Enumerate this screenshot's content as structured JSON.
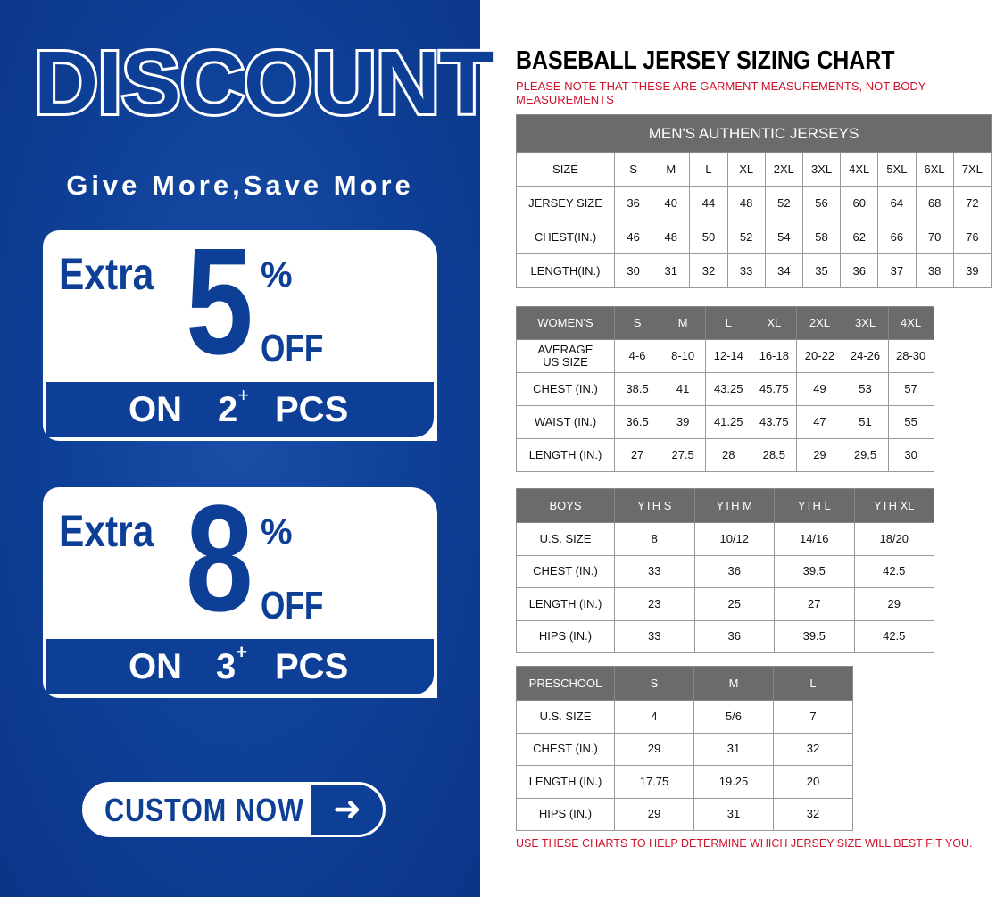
{
  "promo": {
    "headline": "DISCOUNT",
    "tagline": "Give More,Save More",
    "offers": [
      {
        "extra": "Extra",
        "value": "5",
        "percent": "%",
        "off": "OFF",
        "on": "ON",
        "qty": "2",
        "plus": "+",
        "pcs": "PCS"
      },
      {
        "extra": "Extra",
        "value": "8",
        "percent": "%",
        "off": "OFF",
        "on": "ON",
        "qty": "3",
        "plus": "+",
        "pcs": "PCS"
      }
    ],
    "button": {
      "label": "CUSTOM NOW",
      "icon": "arrow-right-icon"
    },
    "colors": {
      "blue": "#0e3f96",
      "white": "#ffffff"
    }
  },
  "chart": {
    "title": "BASEBALL JERSEY SIZING CHART",
    "note": "PLEASE NOTE THAT THESE ARE GARMENT MEASUREMENTS, NOT BODY MEASUREMENTS",
    "footer": "USE THESE CHARTS TO HELP DETERMINE WHICH JERSEY SIZE WILL BEST FIT YOU.",
    "colors": {
      "header_gray": "#6b6b6b",
      "note_red": "#d0112b"
    },
    "tables": [
      {
        "caption": "MEN'S AUTHENTIC JERSEYS",
        "header": [
          "SIZE",
          "S",
          "M",
          "L",
          "XL",
          "2XL",
          "3XL",
          "4XL",
          "5XL",
          "6XL",
          "7XL"
        ],
        "header_as_row": true,
        "rows": [
          [
            "JERSEY SIZE",
            "36",
            "40",
            "44",
            "48",
            "52",
            "56",
            "60",
            "64",
            "68",
            "72"
          ],
          [
            "CHEST(IN.)",
            "46",
            "48",
            "50",
            "52",
            "54",
            "58",
            "62",
            "66",
            "70",
            "76"
          ],
          [
            "LENGTH(IN.)",
            "30",
            "31",
            "32",
            "33",
            "34",
            "35",
            "36",
            "37",
            "38",
            "39"
          ]
        ]
      },
      {
        "header": [
          "WOMEN'S",
          "S",
          "M",
          "L",
          "XL",
          "2XL",
          "3XL",
          "4XL"
        ],
        "rows": [
          [
            "AVERAGE US SIZE",
            "4-6",
            "8-10",
            "12-14",
            "16-18",
            "20-22",
            "24-26",
            "28-30"
          ],
          [
            "CHEST (IN.)",
            "38.5",
            "41",
            "43.25",
            "45.75",
            "49",
            "53",
            "57"
          ],
          [
            "WAIST (IN.)",
            "36.5",
            "39",
            "41.25",
            "43.75",
            "47",
            "51",
            "55"
          ],
          [
            "LENGTH (IN.)",
            "27",
            "27.5",
            "28",
            "28.5",
            "29",
            "29.5",
            "30"
          ]
        ]
      },
      {
        "header": [
          "BOYS",
          "YTH S",
          "YTH M",
          "YTH L",
          "YTH XL"
        ],
        "rows": [
          [
            "U.S. SIZE",
            "8",
            "10/12",
            "14/16",
            "18/20"
          ],
          [
            "CHEST (IN.)",
            "33",
            "36",
            "39.5",
            "42.5"
          ],
          [
            "LENGTH (IN.)",
            "23",
            "25",
            "27",
            "29"
          ],
          [
            "HIPS (IN.)",
            "33",
            "36",
            "39.5",
            "42.5"
          ]
        ]
      },
      {
        "header": [
          "PRESCHOOL",
          "S",
          "M",
          "L"
        ],
        "rows": [
          [
            "U.S. SIZE",
            "4",
            "5/6",
            "7"
          ],
          [
            "CHEST (IN.)",
            "29",
            "31",
            "32"
          ],
          [
            "LENGTH (IN.)",
            "17.75",
            "19.25",
            "20"
          ],
          [
            "HIPS (IN.)",
            "29",
            "31",
            "32"
          ]
        ]
      }
    ]
  }
}
